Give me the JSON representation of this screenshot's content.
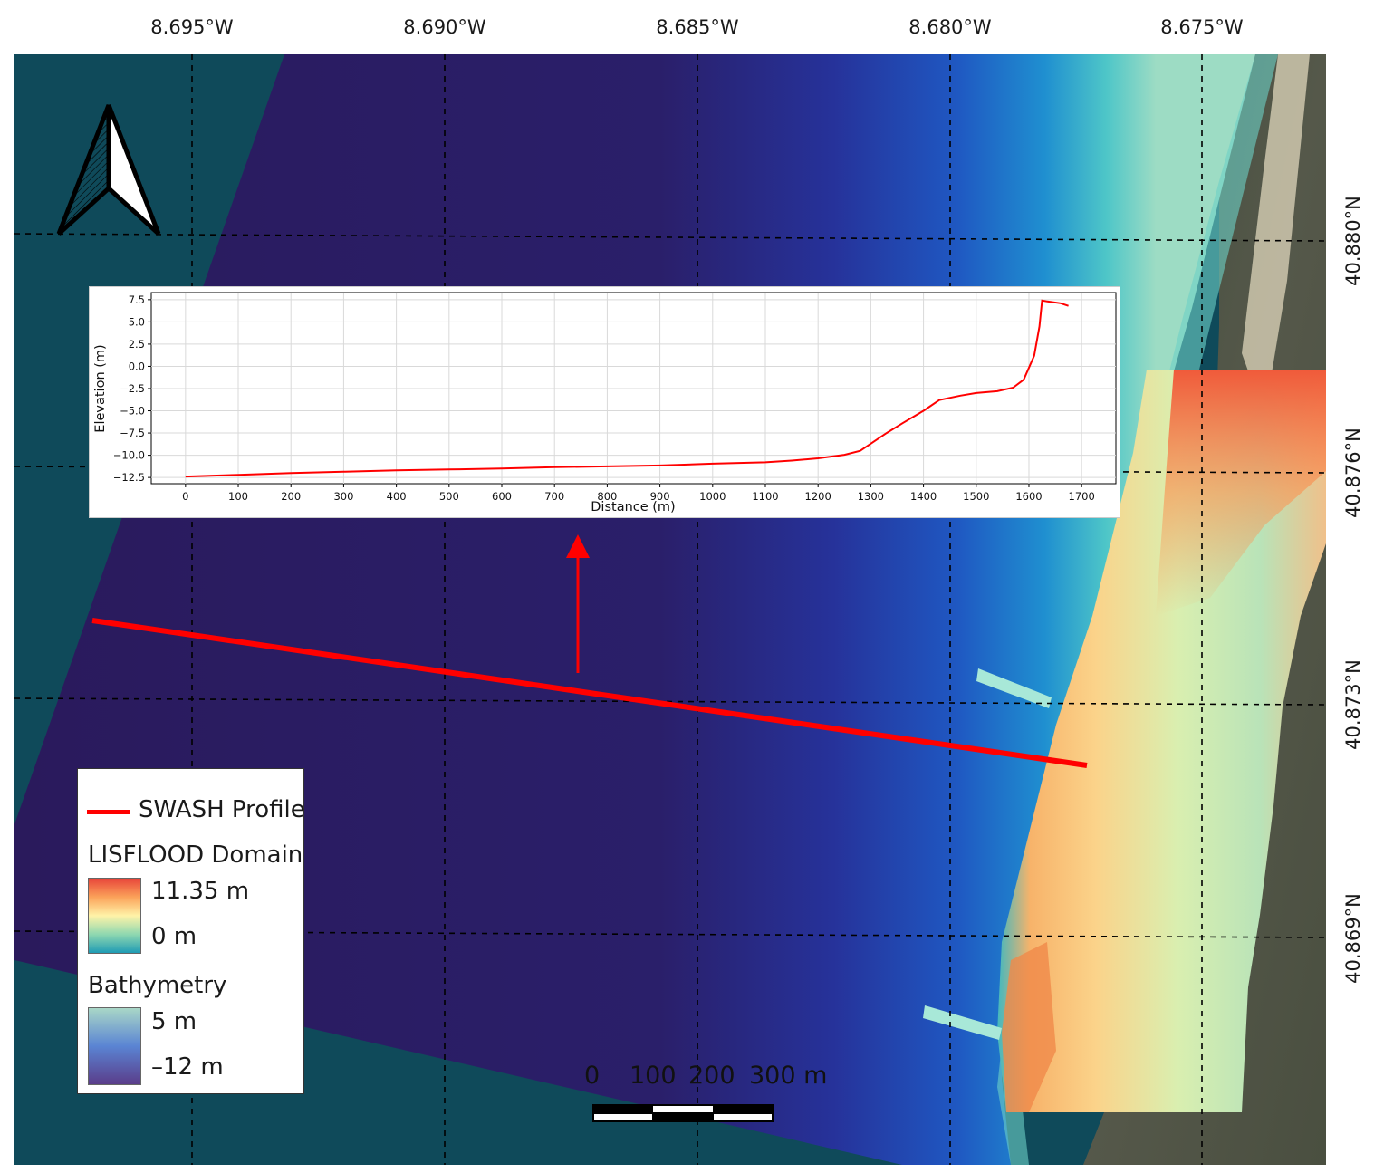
{
  "graticule": {
    "longitude_labels": [
      "8.695°W",
      "8.690°W",
      "8.685°W",
      "8.680°W",
      "8.675°W"
    ],
    "latitude_labels": [
      "40.880°N",
      "40.876°N",
      "40.873°N",
      "40.869°N"
    ]
  },
  "legend": {
    "profile_label": "SWASH Profile",
    "profile_color": "#ff0000",
    "lisflood_title": "LISFLOOD Domain",
    "lisflood_max": "11.35 m",
    "lisflood_min": "0 m",
    "lisflood_colors": [
      "#e8463a",
      "#fba25a",
      "#fff3a8",
      "#8fd8b0",
      "#1f9bb4"
    ],
    "bathy_title": "Bathymetry",
    "bathy_max": "5 m",
    "bathy_min": "–12 m",
    "bathy_colors": [
      "#a9d7c7",
      "#5a84d3",
      "#5a3d8a"
    ]
  },
  "scale_bar": {
    "labels": [
      "0",
      "100",
      "200",
      "300 m"
    ]
  },
  "north_arrow": {
    "icon": "north-arrow-icon"
  },
  "chart_data": {
    "type": "line",
    "xlabel": "Distance (m)",
    "ylabel": "Elevation (m)",
    "xlim": [
      -65,
      1765
    ],
    "ylim": [
      -13.2,
      8.3
    ],
    "xticks": [
      0,
      100,
      200,
      300,
      400,
      500,
      600,
      700,
      800,
      900,
      1000,
      1100,
      1200,
      1300,
      1400,
      1500,
      1600,
      1700
    ],
    "yticks": [
      7.5,
      5.0,
      2.5,
      0.0,
      -2.5,
      -5.0,
      -7.5,
      -10.0,
      -12.5
    ],
    "ytick_labels": [
      "7.5",
      "5.0",
      "2.5",
      "0.0",
      "−2.5",
      "−5.0",
      "−7.5",
      "−10.0",
      "−12.5"
    ],
    "grid": true,
    "series": [
      {
        "color": "#ff0000",
        "x": [
          0,
          100,
          200,
          300,
          400,
          500,
          600,
          700,
          800,
          900,
          1000,
          1100,
          1150,
          1200,
          1250,
          1280,
          1300,
          1330,
          1360,
          1400,
          1430,
          1470,
          1500,
          1540,
          1570,
          1590,
          1610,
          1620,
          1625,
          1635,
          1660,
          1675
        ],
        "y": [
          -12.4,
          -12.2,
          -12.0,
          -11.85,
          -11.7,
          -11.6,
          -11.5,
          -11.35,
          -11.25,
          -11.15,
          -10.95,
          -10.8,
          -10.6,
          -10.35,
          -9.95,
          -9.5,
          -8.7,
          -7.5,
          -6.4,
          -5.0,
          -3.8,
          -3.3,
          -3.0,
          -2.8,
          -2.4,
          -1.5,
          1.2,
          4.5,
          7.4,
          7.3,
          7.1,
          6.8
        ]
      }
    ]
  }
}
